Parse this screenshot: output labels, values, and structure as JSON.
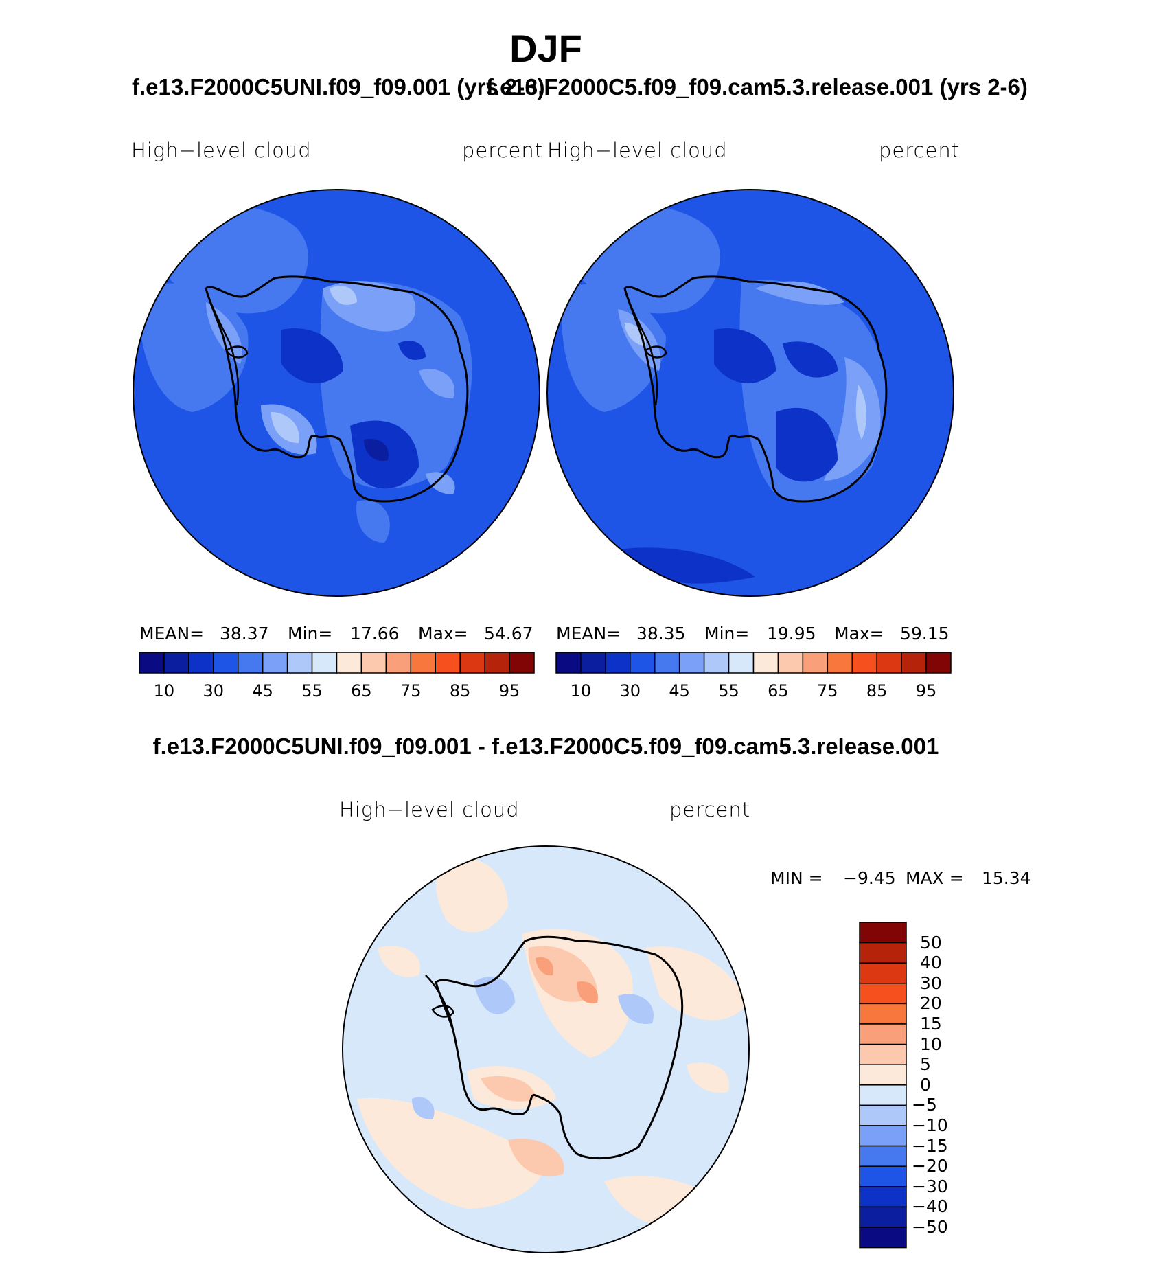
{
  "figure": {
    "title": "DJF",
    "diff_title": "f.e13.F2000C5UNI.f09_f09.001 - f.e13.F2000C5.f09_f09.cam5.3.release.001"
  },
  "panels": [
    {
      "case_title": "f.e13.F2000C5UNI.f09_f09.001 (yrs 2-6)",
      "variable": "High−level cloud",
      "units": "percent",
      "mean_label": "MEAN=",
      "mean": "38.37",
      "min_label": "Min=",
      "min": "17.66",
      "max_label": "Max=",
      "max": "54.67"
    },
    {
      "case_title": "f.e13.F2000C5.f09_f09.cam5.3.release.001 (yrs 2-6)",
      "variable": "High−level cloud",
      "units": "percent",
      "mean_label": "MEAN=",
      "mean": "38.35",
      "min_label": "Min=",
      "min": "19.95",
      "max_label": "Max=",
      "max": "59.15"
    }
  ],
  "diff_panel": {
    "variable": "High−level cloud",
    "units": "percent",
    "min_label": "MIN =",
    "min": "−9.45",
    "max_label": "MAX =",
    "max": "15.34"
  },
  "colorbar_abs": {
    "colors": [
      "#0a0a82",
      "#0b1ea0",
      "#0c32c8",
      "#1e55e6",
      "#4678f0",
      "#7aa0f7",
      "#afc8fa",
      "#d7e8fb",
      "#fde9d9",
      "#fcc9ae",
      "#f9a07a",
      "#f7773d",
      "#f5501e",
      "#dc3812",
      "#b4230a",
      "#820505"
    ],
    "tick_labels": [
      "10",
      "30",
      "45",
      "55",
      "65",
      "75",
      "85",
      "95"
    ]
  },
  "colorbar_diff": {
    "colors": [
      "#820505",
      "#b4230a",
      "#dc3812",
      "#f5501e",
      "#f7773d",
      "#f9a07a",
      "#fcc9ae",
      "#fde9d9",
      "#d7e8fb",
      "#afc8fa",
      "#7aa0f7",
      "#4678f0",
      "#1e55e6",
      "#0c32c8",
      "#0b1ea0",
      "#0a0a82"
    ],
    "tick_labels": [
      "50",
      "40",
      "30",
      "20",
      "15",
      "10",
      "5",
      "0",
      "−5",
      "−10",
      "−15",
      "−20",
      "−30",
      "−40",
      "−50"
    ]
  },
  "map_colors": {
    "abs_background": "#1e55e6",
    "abs_lighter": "#4678f0",
    "abs_light": "#7aa0f7",
    "abs_pale": "#afc8fa",
    "abs_dark": "#0c32c8",
    "diff_background": "#d7e8fb",
    "diff_positive": "#fde9d9",
    "diff_positive_mid": "#fcc9ae",
    "diff_positive_high": "#f9a07a",
    "diff_negative": "#afc8fa"
  }
}
